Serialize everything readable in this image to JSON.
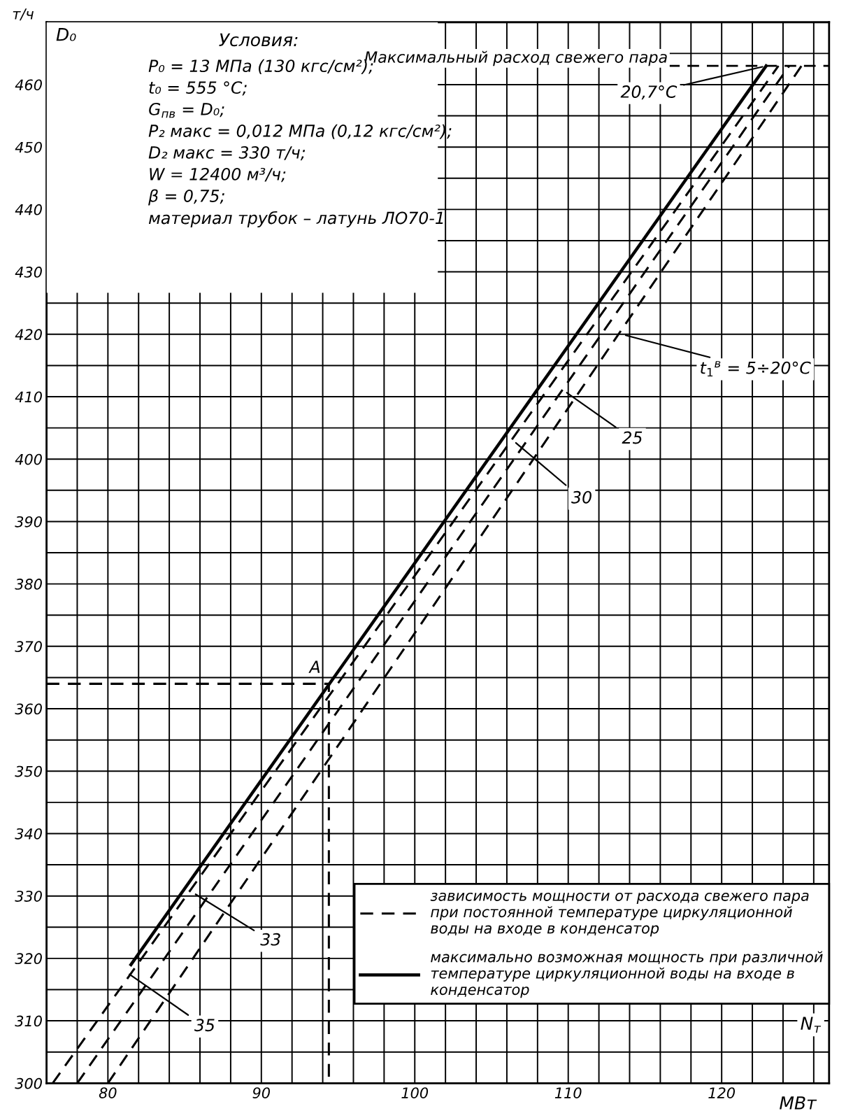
{
  "chart_data": {
    "type": "line",
    "xlabel": "МВт",
    "ylabel": "т/ч",
    "xlim": [
      76,
      127
    ],
    "ylim": [
      300,
      470
    ],
    "xticks": [
      {
        "value": 76,
        "label": null
      },
      {
        "value": 78,
        "label": null
      },
      80,
      {
        "value": 82,
        "label": null
      },
      {
        "value": 84,
        "label": null
      },
      {
        "value": 86,
        "label": null
      },
      {
        "value": 88,
        "label": null
      },
      90,
      {
        "value": 92,
        "label": null
      },
      {
        "value": 94,
        "label": null
      },
      {
        "value": 96,
        "label": null
      },
      {
        "value": 98,
        "label": null
      },
      100,
      {
        "value": 102,
        "label": null
      },
      {
        "value": 104,
        "label": null
      },
      {
        "value": 106,
        "label": null
      },
      {
        "value": 108,
        "label": null
      },
      110,
      {
        "value": 112,
        "label": null
      },
      {
        "value": 114,
        "label": null
      },
      {
        "value": 116,
        "label": null
      },
      {
        "value": 118,
        "label": null
      },
      120,
      {
        "value": 122,
        "label": null
      },
      {
        "value": 124,
        "label": null
      },
      {
        "value": 126,
        "label": null
      }
    ],
    "yticks": [
      300,
      {
        "value": 305,
        "label": null
      },
      310,
      {
        "value": 315,
        "label": null
      },
      320,
      {
        "value": 325,
        "label": null
      },
      330,
      {
        "value": 335,
        "label": null
      },
      340,
      {
        "value": 345,
        "label": null
      },
      350,
      {
        "value": 355,
        "label": null
      },
      360,
      {
        "value": 365,
        "label": null
      },
      370,
      {
        "value": 375,
        "label": null
      },
      380,
      {
        "value": 385,
        "label": null
      },
      390,
      {
        "value": 395,
        "label": null
      },
      400,
      {
        "value": 405,
        "label": null
      },
      410,
      {
        "value": 415,
        "label": null
      },
      420,
      {
        "value": 425,
        "label": null
      },
      430,
      {
        "value": 435,
        "label": null
      },
      440,
      {
        "value": 445,
        "label": null
      },
      450,
      {
        "value": 455,
        "label": null
      },
      460,
      {
        "value": 465,
        "label": null
      }
    ],
    "grid": true,
    "legend": "bottom right",
    "series": [
      {
        "name": "зависимость мощности от расхода свежего пара при постоянной температуре циркуляционной воды на входе в конденсатор",
        "color": "#000000",
        "line_style": "dashed",
        "x": [
          76.4,
          123.7
        ],
        "values": [
          300,
          463
        ]
      },
      {
        "color": "#000000",
        "line_style": "dashed",
        "x": [
          78,
          124.4
        ],
        "values": [
          300,
          463
        ]
      },
      {
        "color": "#000000",
        "line_style": "dashed",
        "x": [
          80,
          125.2
        ],
        "values": [
          300,
          463
        ]
      },
      {
        "name": "максимально возможная мощность при различной температуре циркуляционной воды на входе в конденсатор",
        "color": "#000000",
        "line_style": "solid",
        "x": [
          81.5,
          122.9
        ],
        "values": [
          319,
          463
        ]
      },
      {
        "color": "#000000",
        "line_style": "dashed",
        "x": [
          76,
          94.4,
          94.4
        ],
        "values": [
          364,
          364,
          300
        ]
      }
    ],
    "ref_lines": [
      {
        "axis": "y",
        "value": 463,
        "label": "Максимальный расход свежего пара",
        "line_style": "dashed",
        "color": "#000000"
      }
    ],
    "annotations": [
      "Условия:",
      "P₀ = 13 МПа (130 кгс/см²);",
      "t₀ = 555 °C;",
      "G$_{пв}$ = D₀;",
      "P₂ макс = 0,012 МПа (0,12 кгс/см²);",
      "D₂ макс = 330 т/ч;",
      "W = 12400 м³/ч;",
      "β = 0,75;",
      "материал трубок – латунь ЛО70-1",
      "D₀",
      "N$_{т}$",
      {
        "text": "A",
        "x": 94.4,
        "y": 364
      },
      {
        "text": "30",
        "x": 106.4,
        "y": 403
      },
      {
        "text": "25",
        "x": 109.7,
        "y": 411
      },
      {
        "text": "t$_{1}$$^{в}$ = 5÷20°C",
        "x": 113.5,
        "y": 420
      },
      {
        "text": "20,7°C",
        "x": 122.9,
        "y": 463
      },
      {
        "text": "33",
        "x": 85.5,
        "y": 330.6
      },
      {
        "text": "35",
        "x": 81.2,
        "y": 317.8
      }
    ]
  }
}
